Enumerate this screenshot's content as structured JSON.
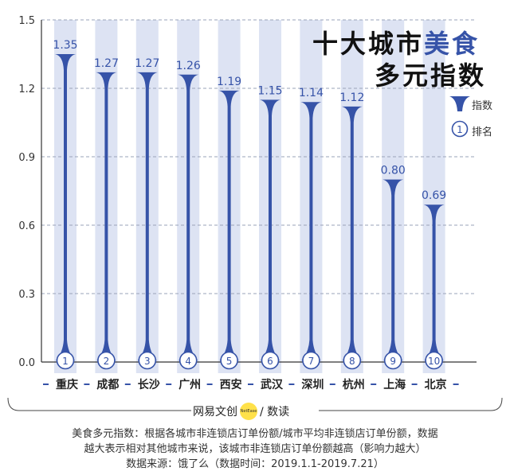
{
  "title": {
    "line1_pre": "十大城市",
    "line1_accent": "美食",
    "line2": "多元指数"
  },
  "legend": {
    "index_label": "指数",
    "rank_label": "排名",
    "rank_symbol": "1"
  },
  "chart_data": {
    "type": "bar",
    "categories": [
      "重庆",
      "成都",
      "长沙",
      "广州",
      "西安",
      "武汉",
      "深圳",
      "杭州",
      "上海",
      "北京"
    ],
    "values": [
      1.35,
      1.27,
      1.27,
      1.26,
      1.19,
      1.15,
      1.14,
      1.12,
      0.8,
      0.69
    ],
    "value_labels": [
      "1.35",
      "1.27",
      "1.27",
      "1.26",
      "1.19",
      "1.15",
      "1.14",
      "1.12",
      "0.80",
      "0.69"
    ],
    "ranks": [
      "1",
      "2",
      "3",
      "4",
      "5",
      "6",
      "7",
      "8",
      "9",
      "10"
    ],
    "ylim": [
      0,
      1.5
    ],
    "yticks": [
      "0.0",
      "0.3",
      "0.6",
      "0.9",
      "1.2",
      "1.5"
    ],
    "grid": true,
    "colors": {
      "bar": "#3653a8",
      "band": "#dde3f3",
      "grid": "#9aa3b8"
    }
  },
  "brand": {
    "left": "网易",
    "mid": "文创",
    "logo": "NetEase",
    "right": "/ 数读"
  },
  "notes": {
    "line1": "美食多元指数：根据各城市非连锁店订单份额/城市平均非连锁店订单份额，数据",
    "line2": "越大表示相对其他城市来说，该城市非连锁店订单份额越高（影响力越大）",
    "line3": "数据来源：饿了么（数据时间：2019.1.1-2019.7.21）"
  }
}
